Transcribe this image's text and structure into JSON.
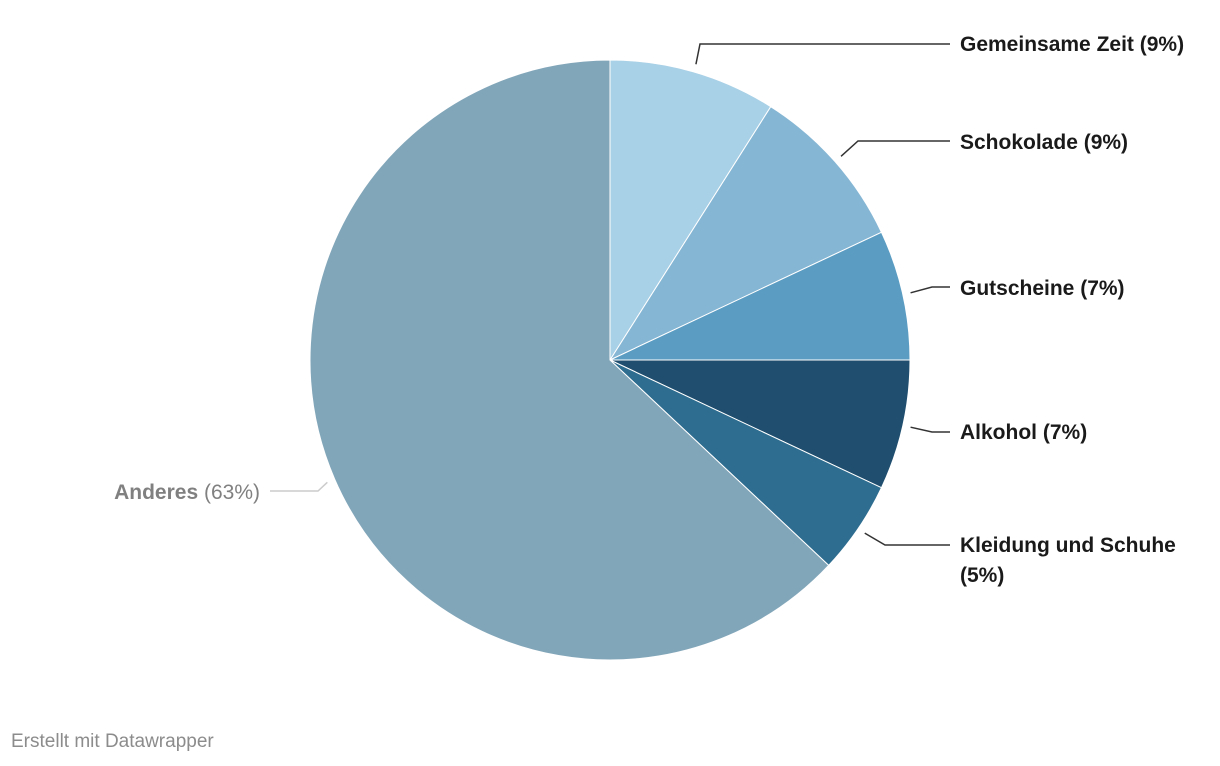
{
  "chart_data": {
    "type": "pie",
    "start_angle_deg": 0,
    "direction": "clockwise",
    "slices": [
      {
        "label": "Gemeinsame Zeit",
        "pct_label": "(9%)",
        "value": 9,
        "color": "#a8d0e6",
        "label_color": "#1a1a1a",
        "muted": false
      },
      {
        "label": "Schokolade",
        "pct_label": "(9%)",
        "value": 9,
        "color": "#85b6d4",
        "label_color": "#1a1a1a",
        "muted": false
      },
      {
        "label": "Gutscheine",
        "pct_label": "(7%)",
        "value": 7,
        "color": "#5a9cc2",
        "label_color": "#1a1a1a",
        "muted": false
      },
      {
        "label": "Alkohol",
        "pct_label": "(7%)",
        "value": 7,
        "color": "#1f4e6e",
        "label_color": "#1a1a1a",
        "muted": false
      },
      {
        "label": "Kleidung und Schuhe",
        "pct_label": "(5%)",
        "value": 5,
        "color": "#2e6d8f",
        "label_color": "#1a1a1a",
        "muted": false
      },
      {
        "label": "Anderes",
        "pct_label": "(63%)",
        "value": 63,
        "color": "#82a6b9",
        "label_color": "#808080",
        "muted": true
      }
    ]
  },
  "footer": {
    "credit": "Erstellt mit Datawrapper"
  }
}
